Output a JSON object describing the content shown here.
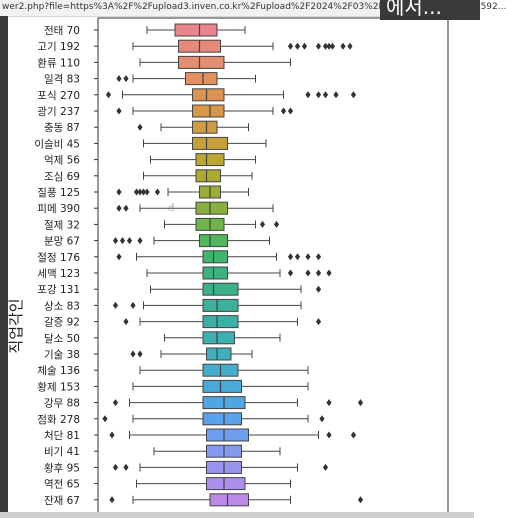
{
  "browser": {
    "url": "wer2.php?file=https%3A%2F%2Fupload3.inven.co.kr%2Fupload%2F2024%2F03%2F13%2Fbbs%2Fi13988592...",
    "overlay_text": "에서..."
  },
  "chart_data": {
    "type": "boxplot",
    "orientation": "horizontal",
    "ylabel": "직업각인",
    "xlabel": "",
    "xlim": [
      0,
      100
    ],
    "grid": false,
    "categories": [
      "전태 70",
      "고기 192",
      "환류 110",
      "일격 83",
      "포식 270",
      "광기 237",
      "충동 87",
      "이슬비 45",
      "억제 56",
      "조심 69",
      "질풍 125",
      "피메 390",
      "절제 32",
      "분망 67",
      "절정 176",
      "세맥 123",
      "포강 131",
      "상소 83",
      "갈증 92",
      "달소 50",
      "기술 38",
      "체술 136",
      "황제 153",
      "강무 88",
      "점화 278",
      "처단 81",
      "비기 41",
      "황후 95",
      "역전 65",
      "잔재 67"
    ],
    "series": [
      {
        "name": "전태 70",
        "color": "#e8868b",
        "whisker_low": 14,
        "q1": 22,
        "median": 29,
        "q3": 34,
        "whisker_high": 42,
        "outliers": []
      },
      {
        "name": "고기 192",
        "color": "#e6897a",
        "whisker_low": 10,
        "q1": 23,
        "median": 29,
        "q3": 35,
        "whisker_high": 50,
        "outliers": [
          55,
          57,
          59,
          63,
          65,
          66,
          67,
          70,
          72
        ]
      },
      {
        "name": "환류 110",
        "color": "#e48d6f",
        "whisker_low": 12,
        "q1": 23,
        "median": 29,
        "q3": 36,
        "whisker_high": 55,
        "outliers": []
      },
      {
        "name": "일격 83",
        "color": "#e29060",
        "whisker_low": 10,
        "q1": 25,
        "median": 30,
        "q3": 34,
        "whisker_high": 45,
        "outliers": [
          6,
          8
        ]
      },
      {
        "name": "포식 270",
        "color": "#de9350",
        "whisker_low": 7,
        "q1": 27,
        "median": 31,
        "q3": 36,
        "whisker_high": 53,
        "outliers": [
          3,
          60,
          63,
          65,
          68,
          73
        ]
      },
      {
        "name": "광기 237",
        "color": "#d89846",
        "whisker_low": 10,
        "q1": 27,
        "median": 32,
        "q3": 36,
        "whisker_high": 50,
        "outliers": [
          6,
          53,
          55
        ]
      },
      {
        "name": "충동 87",
        "color": "#cf9d3f",
        "whisker_low": 18,
        "q1": 27,
        "median": 31,
        "q3": 34,
        "whisker_high": 43,
        "outliers": [
          12
        ]
      },
      {
        "name": "이슬비 45",
        "color": "#c6a137",
        "whisker_low": 13,
        "q1": 27,
        "median": 31,
        "q3": 37,
        "whisker_high": 48,
        "outliers": []
      },
      {
        "name": "억제 56",
        "color": "#bba633",
        "whisker_low": 15,
        "q1": 28,
        "median": 31,
        "q3": 36,
        "whisker_high": 45,
        "outliers": []
      },
      {
        "name": "조심 69",
        "color": "#adaa32",
        "whisker_low": 13,
        "q1": 28,
        "median": 31,
        "q3": 35,
        "whisker_high": 44,
        "outliers": []
      },
      {
        "name": "질풍 125",
        "color": "#9cad35",
        "whisker_low": 20,
        "q1": 29,
        "median": 32,
        "q3": 35,
        "whisker_high": 43,
        "outliers": [
          6,
          11,
          12,
          13,
          14,
          17
        ]
      },
      {
        "name": "피메 390",
        "color": "#88b03e",
        "whisker_low": 12,
        "q1": 28,
        "median": 32,
        "q3": 37,
        "whisker_high": 50,
        "outliers": [
          6,
          8
        ]
      },
      {
        "name": "절제 32",
        "color": "#6fb44c",
        "whisker_low": 19,
        "q1": 28,
        "median": 32,
        "q3": 36,
        "whisker_high": 45,
        "outliers": [
          47,
          51
        ]
      },
      {
        "name": "분망 67",
        "color": "#52b65c",
        "whisker_low": 16,
        "q1": 29,
        "median": 32,
        "q3": 37,
        "whisker_high": 49,
        "outliers": [
          5,
          7,
          9,
          12
        ]
      },
      {
        "name": "절정 176",
        "color": "#41b46e",
        "whisker_low": 11,
        "q1": 30,
        "median": 33,
        "q3": 37,
        "whisker_high": 51,
        "outliers": [
          6,
          55,
          57,
          60,
          63
        ]
      },
      {
        "name": "세맥 123",
        "color": "#3db27e",
        "whisker_low": 14,
        "q1": 30,
        "median": 33,
        "q3": 37,
        "whisker_high": 52,
        "outliers": [
          55,
          60,
          63,
          66
        ]
      },
      {
        "name": "포강 131",
        "color": "#3bb18c",
        "whisker_low": 15,
        "q1": 30,
        "median": 33,
        "q3": 40,
        "whisker_high": 58,
        "outliers": [
          63
        ]
      },
      {
        "name": "상소 83",
        "color": "#3bb09a",
        "whisker_low": 13,
        "q1": 30,
        "median": 34,
        "q3": 40,
        "whisker_high": 58,
        "outliers": [
          5,
          10
        ]
      },
      {
        "name": "갈증 92",
        "color": "#3cb0a6",
        "whisker_low": 12,
        "q1": 30,
        "median": 34,
        "q3": 40,
        "whisker_high": 57,
        "outliers": [
          8,
          63
        ]
      },
      {
        "name": "달소 50",
        "color": "#3eafb2",
        "whisker_low": 19,
        "q1": 30,
        "median": 34,
        "q3": 39,
        "whisker_high": 52,
        "outliers": []
      },
      {
        "name": "기술 38",
        "color": "#41aec0",
        "whisker_low": 18,
        "q1": 31,
        "median": 34,
        "q3": 38,
        "whisker_high": 44,
        "outliers": [
          10,
          12
        ]
      },
      {
        "name": "체술 136",
        "color": "#44adcc",
        "whisker_low": 12,
        "q1": 30,
        "median": 35,
        "q3": 40,
        "whisker_high": 60,
        "outliers": []
      },
      {
        "name": "황제 153",
        "color": "#48aad8",
        "whisker_low": 10,
        "q1": 30,
        "median": 35,
        "q3": 41,
        "whisker_high": 60,
        "outliers": []
      },
      {
        "name": "강무 88",
        "color": "#4fa7e2",
        "whisker_low": 9,
        "q1": 30,
        "median": 36,
        "q3": 42,
        "whisker_high": 57,
        "outliers": [
          5,
          66,
          75
        ]
      },
      {
        "name": "점화 278",
        "color": "#5aa3ec",
        "whisker_low": 10,
        "q1": 30,
        "median": 36,
        "q3": 41,
        "whisker_high": 60,
        "outliers": [
          2,
          64
        ]
      },
      {
        "name": "처단 81",
        "color": "#6e9ef0",
        "whisker_low": 9,
        "q1": 31,
        "median": 36,
        "q3": 43,
        "whisker_high": 63,
        "outliers": [
          4,
          66,
          73
        ]
      },
      {
        "name": "비기 41",
        "color": "#8599f0",
        "whisker_low": 16,
        "q1": 31,
        "median": 36,
        "q3": 41,
        "whisker_high": 52,
        "outliers": []
      },
      {
        "name": "황후 95",
        "color": "#9a94ee",
        "whisker_low": 12,
        "q1": 31,
        "median": 36,
        "q3": 41,
        "whisker_high": 57,
        "outliers": [
          5,
          8,
          65
        ]
      },
      {
        "name": "역전 65",
        "color": "#ac8fec",
        "whisker_low": 11,
        "q1": 31,
        "median": 36,
        "q3": 42,
        "whisker_high": 55,
        "outliers": []
      },
      {
        "name": "잔재 67",
        "color": "#bc8ae8",
        "whisker_low": 10,
        "q1": 32,
        "median": 37,
        "q3": 43,
        "whisker_high": 55,
        "outliers": [
          4,
          75
        ]
      }
    ]
  }
}
